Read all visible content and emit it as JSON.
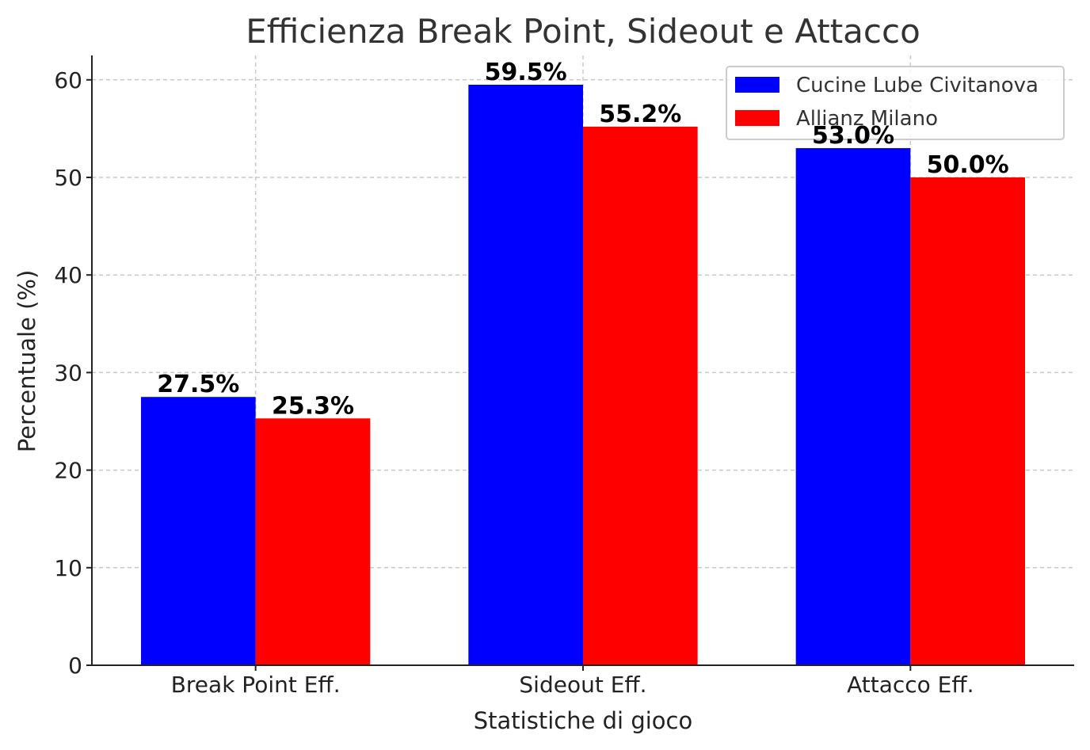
{
  "chart_data": {
    "type": "bar",
    "title": "Efficienza Break Point, Sideout e Attacco",
    "xlabel": "Statistiche di gioco",
    "ylabel": "Percentuale (%)",
    "categories": [
      "Break Point Eff.",
      "Sideout Eff.",
      "Attacco Eff."
    ],
    "series": [
      {
        "name": "Cucine Lube Civitanova",
        "color": "#0000ff",
        "values": [
          27.5,
          59.5,
          53.0
        ],
        "labels": [
          "27.5%",
          "59.5%",
          "53.0%"
        ]
      },
      {
        "name": "Allianz Milano",
        "color": "#ff0000",
        "values": [
          25.3,
          55.2,
          50.0
        ],
        "labels": [
          "25.3%",
          "55.2%",
          "50.0%"
        ]
      }
    ],
    "ylim": [
      0,
      62.5
    ],
    "yticks": [
      0,
      10,
      20,
      30,
      40,
      50,
      60
    ],
    "grid": true,
    "legend": "top-right"
  }
}
